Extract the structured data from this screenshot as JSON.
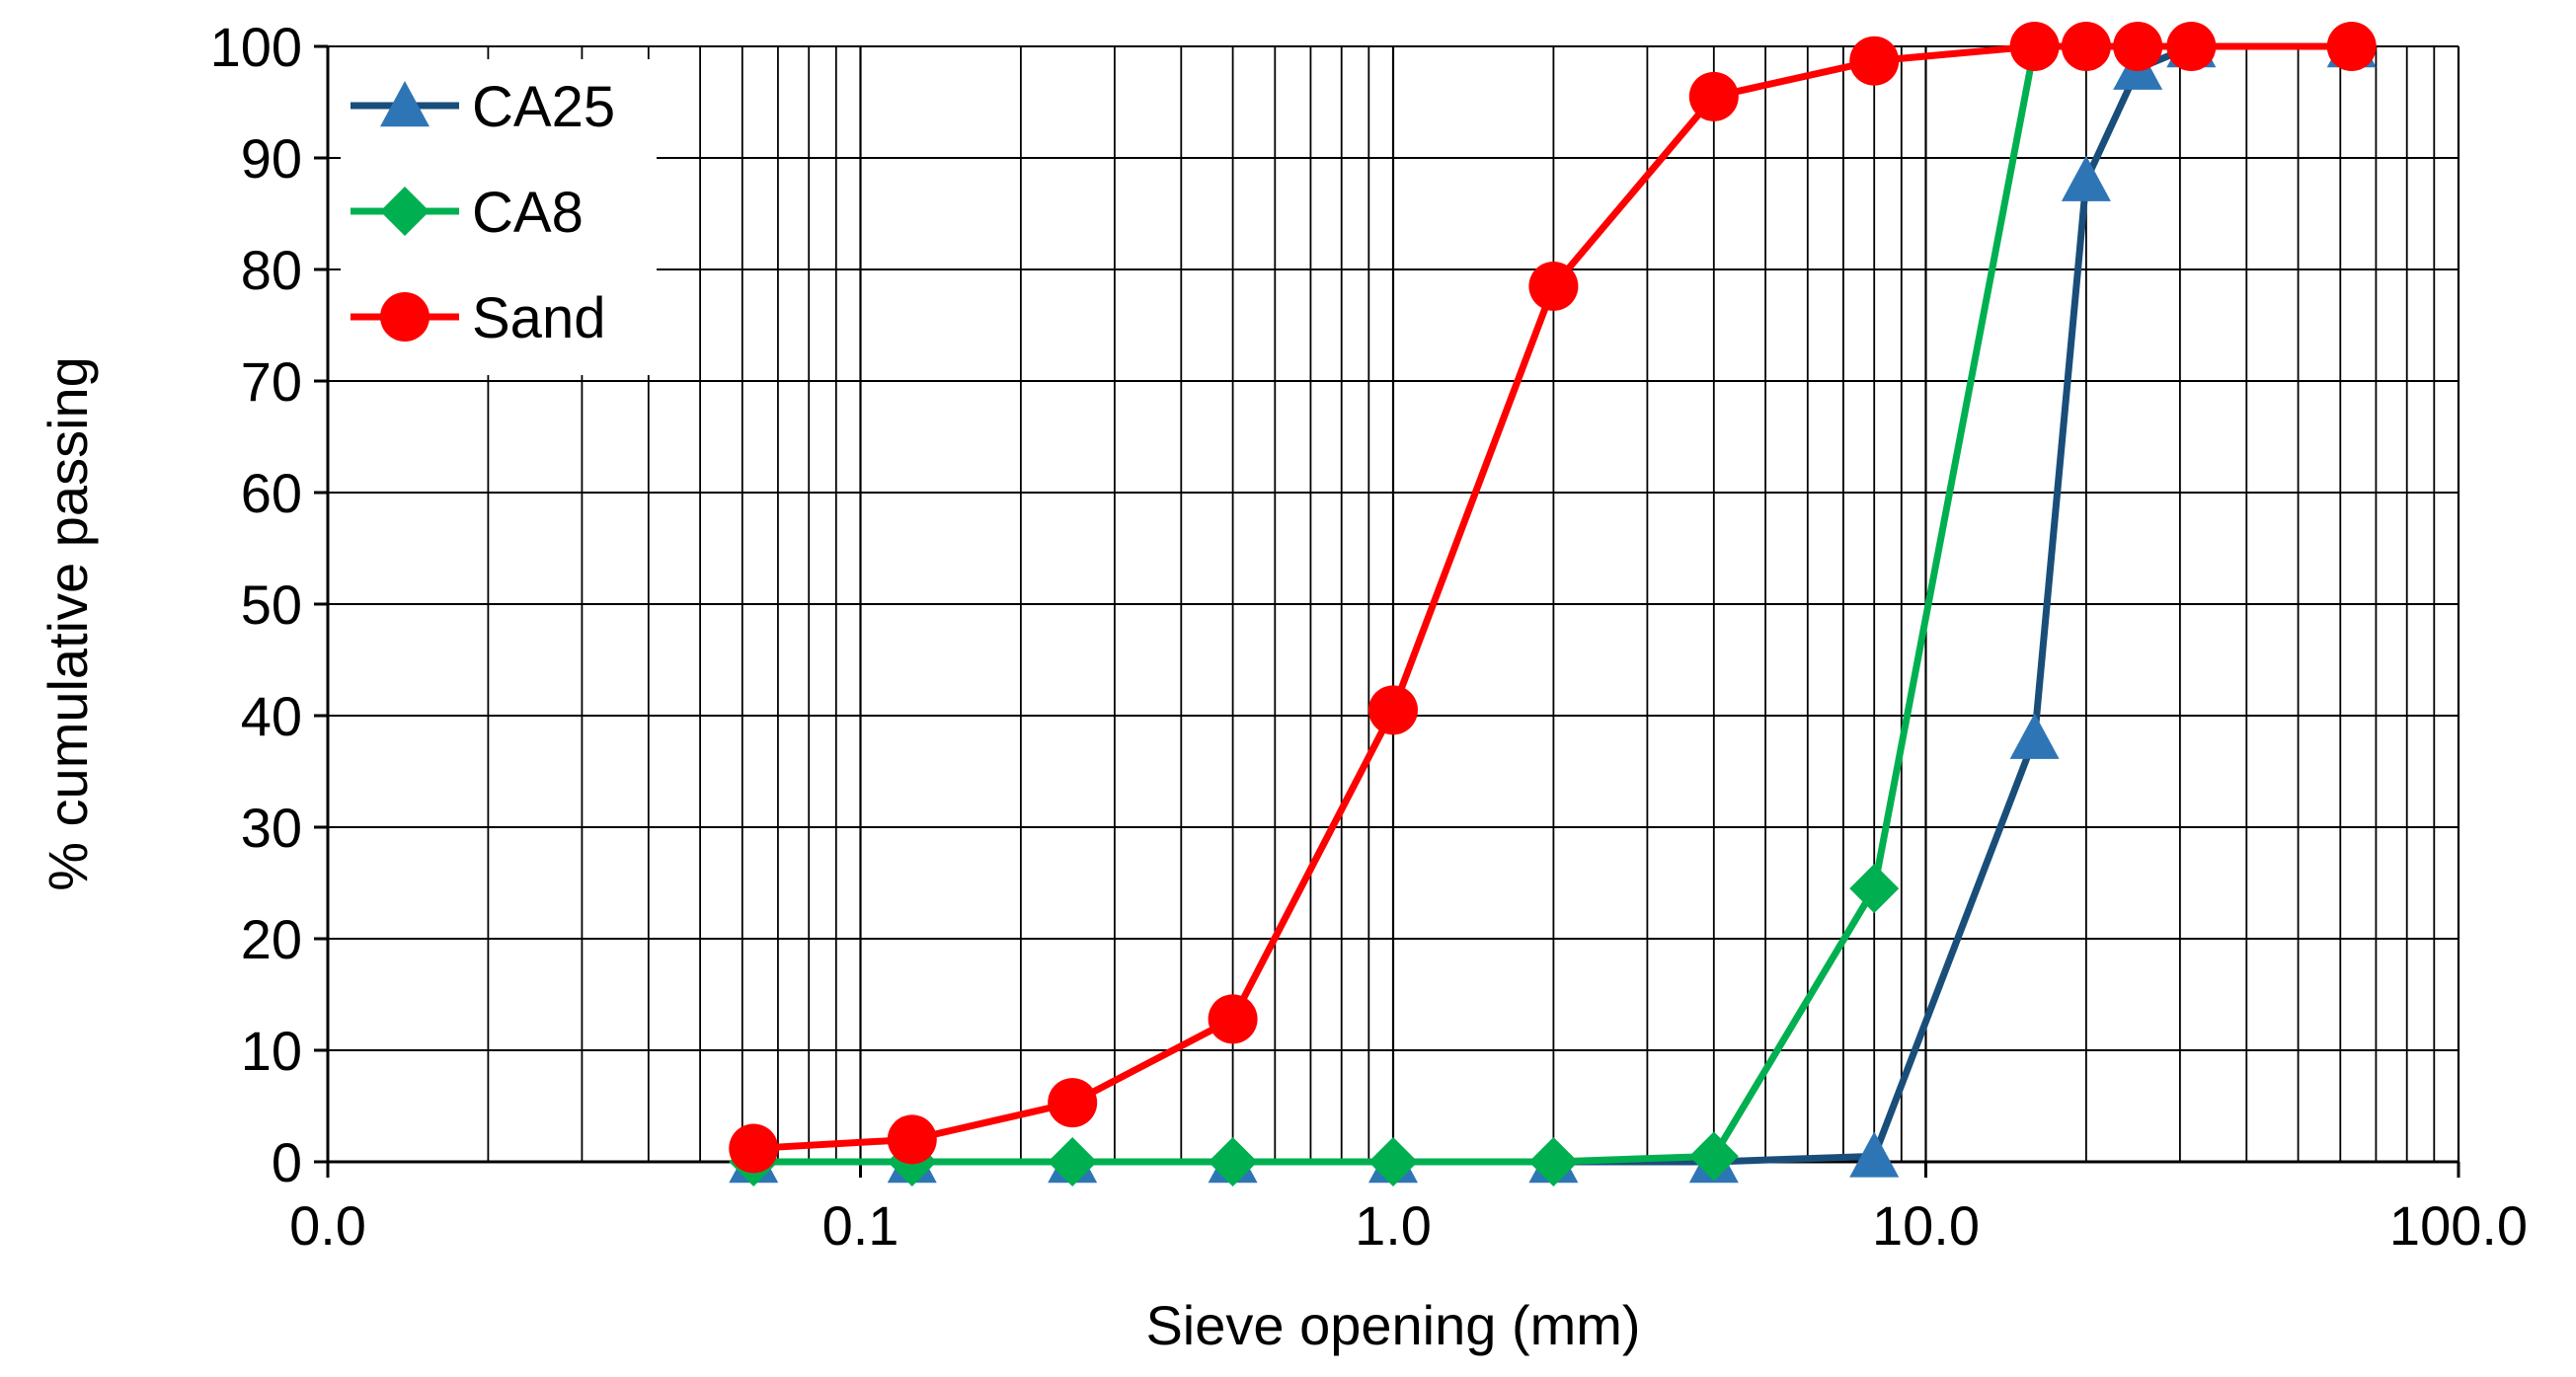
{
  "chart_data": {
    "type": "line",
    "title": "",
    "xlabel": "Sieve opening (mm)",
    "ylabel": "% cumulative passing",
    "x_scale": "log",
    "xlim": [
      0.01,
      100
    ],
    "ylim": [
      0,
      100
    ],
    "x_ticks": [
      0.01,
      0.1,
      1,
      10,
      100
    ],
    "x_tick_labels": [
      "0.0",
      "0.1",
      "1.0",
      "10.0",
      "100.0"
    ],
    "y_ticks": [
      0,
      10,
      20,
      30,
      40,
      50,
      60,
      70,
      80,
      90,
      100
    ],
    "y_tick_labels": [
      "0",
      "10",
      "20",
      "30",
      "40",
      "50",
      "60",
      "70",
      "80",
      "90",
      "100"
    ],
    "grid": "major and minor vertical (log), major horizontal",
    "legend_position": "top-left",
    "series": [
      {
        "name": "CA25",
        "color": "#1a4e7a",
        "marker": "triangle",
        "marker_color": "#2e75b6",
        "x": [
          0.063,
          0.125,
          0.25,
          0.5,
          1,
          2,
          4,
          8,
          16,
          20,
          25,
          31.5,
          63
        ],
        "y": [
          0,
          0,
          0,
          0,
          0,
          0,
          0,
          0.5,
          38,
          88,
          98,
          100,
          100
        ]
      },
      {
        "name": "CA8",
        "color": "#00b050",
        "marker": "diamond",
        "marker_color": "#00b050",
        "x": [
          0.063,
          0.125,
          0.25,
          0.5,
          1,
          2,
          4,
          8,
          16
        ],
        "y": [
          0,
          0,
          0,
          0,
          0,
          0,
          0.5,
          24.5,
          100
        ]
      },
      {
        "name": "Sand",
        "color": "#ff0000",
        "marker": "circle",
        "marker_color": "#ff0000",
        "x": [
          0.063,
          0.125,
          0.25,
          0.5,
          1,
          2,
          4,
          8,
          16,
          20,
          25,
          31.5,
          63
        ],
        "y": [
          1.2,
          2,
          5.3,
          12.8,
          40.5,
          78.5,
          95.5,
          98.7,
          100,
          100,
          100,
          100,
          100
        ]
      }
    ]
  }
}
